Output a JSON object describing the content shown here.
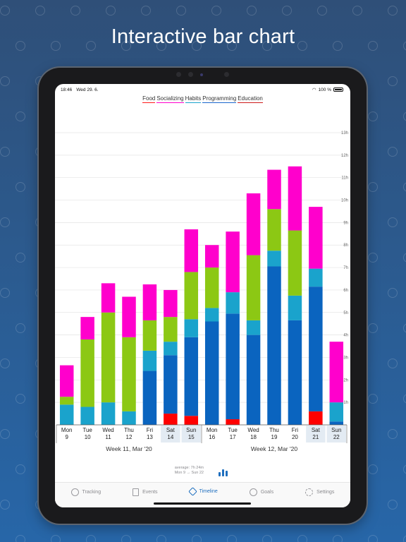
{
  "headline": "Interactive bar chart",
  "status": {
    "time": "18:46",
    "date": "Wed 29. 6.",
    "battery": "100 %"
  },
  "legend": [
    {
      "name": "Food",
      "color": "#ff1a1a"
    },
    {
      "name": "Socializing",
      "color": "#ff00cc"
    },
    {
      "name": "Habits",
      "color": "#1aa3cc"
    },
    {
      "name": "Programming",
      "color": "#1a66cc"
    },
    {
      "name": "Education",
      "color": "#cc1a1a"
    }
  ],
  "chart_data": {
    "type": "bar",
    "stacked": true,
    "ylim": [
      0,
      13
    ],
    "y_ticks": [
      "1h",
      "2h",
      "3h",
      "4h",
      "5h",
      "6h",
      "7h",
      "8h",
      "9h",
      "10h",
      "11h",
      "12h",
      "13h"
    ],
    "categories": [
      {
        "day": "Mon",
        "date": "9",
        "weekend": false
      },
      {
        "day": "Tue",
        "date": "10",
        "weekend": false
      },
      {
        "day": "Wed",
        "date": "11",
        "weekend": false
      },
      {
        "day": "Thu",
        "date": "12",
        "weekend": false
      },
      {
        "day": "Fri",
        "date": "13",
        "weekend": false
      },
      {
        "day": "Sat",
        "date": "14",
        "weekend": true
      },
      {
        "day": "Sun",
        "date": "15",
        "weekend": true
      },
      {
        "day": "Mon",
        "date": "16",
        "weekend": false
      },
      {
        "day": "Tue",
        "date": "17",
        "weekend": false
      },
      {
        "day": "Wed",
        "date": "18",
        "weekend": false
      },
      {
        "day": "Thu",
        "date": "19",
        "weekend": false
      },
      {
        "day": "Fri",
        "date": "20",
        "weekend": false
      },
      {
        "day": "Sat",
        "date": "21",
        "weekend": true
      },
      {
        "day": "Sun",
        "date": "22",
        "weekend": true
      }
    ],
    "series": [
      {
        "color": "#ff0000",
        "values": [
          0,
          0,
          0,
          0,
          0,
          0.5,
          0.4,
          0,
          0.25,
          0,
          0,
          0,
          0.6,
          0
        ]
      },
      {
        "color": "#0a64bf",
        "values": [
          0,
          0,
          0,
          0,
          2.4,
          2.6,
          3.5,
          4.6,
          4.7,
          4.0,
          7.05,
          4.65,
          5.55,
          0.15
        ]
      },
      {
        "color": "#1aa3cc",
        "values": [
          0.9,
          0.8,
          1.0,
          0.6,
          0.9,
          0.6,
          0.8,
          0.6,
          0.95,
          0.65,
          0.7,
          1.1,
          0.8,
          0.85
        ]
      },
      {
        "color": "#8cc814",
        "values": [
          0.35,
          3.0,
          4.0,
          3.3,
          1.35,
          1.1,
          2.1,
          1.8,
          0,
          2.9,
          1.85,
          2.9,
          0,
          0
        ]
      },
      {
        "color": "#ff00cc",
        "values": [
          1.4,
          1.0,
          1.3,
          1.8,
          1.6,
          1.2,
          1.9,
          1.0,
          2.7,
          2.75,
          1.75,
          2.85,
          2.75,
          2.7
        ]
      }
    ],
    "weeks": [
      "Week 11, Mar '20",
      "Week 12, Mar '20"
    ]
  },
  "summary": {
    "average": "average: 7h 24m",
    "range": "Mon 9 → Sun 22"
  },
  "tabs": [
    {
      "label": "Tracking",
      "icon": "clock-icon",
      "active": false
    },
    {
      "label": "Events",
      "icon": "document-icon",
      "active": false
    },
    {
      "label": "Timeline",
      "icon": "diamond-icon",
      "active": true
    },
    {
      "label": "Goals",
      "icon": "target-icon",
      "active": false
    },
    {
      "label": "Settings",
      "icon": "gear-icon",
      "active": false
    }
  ]
}
